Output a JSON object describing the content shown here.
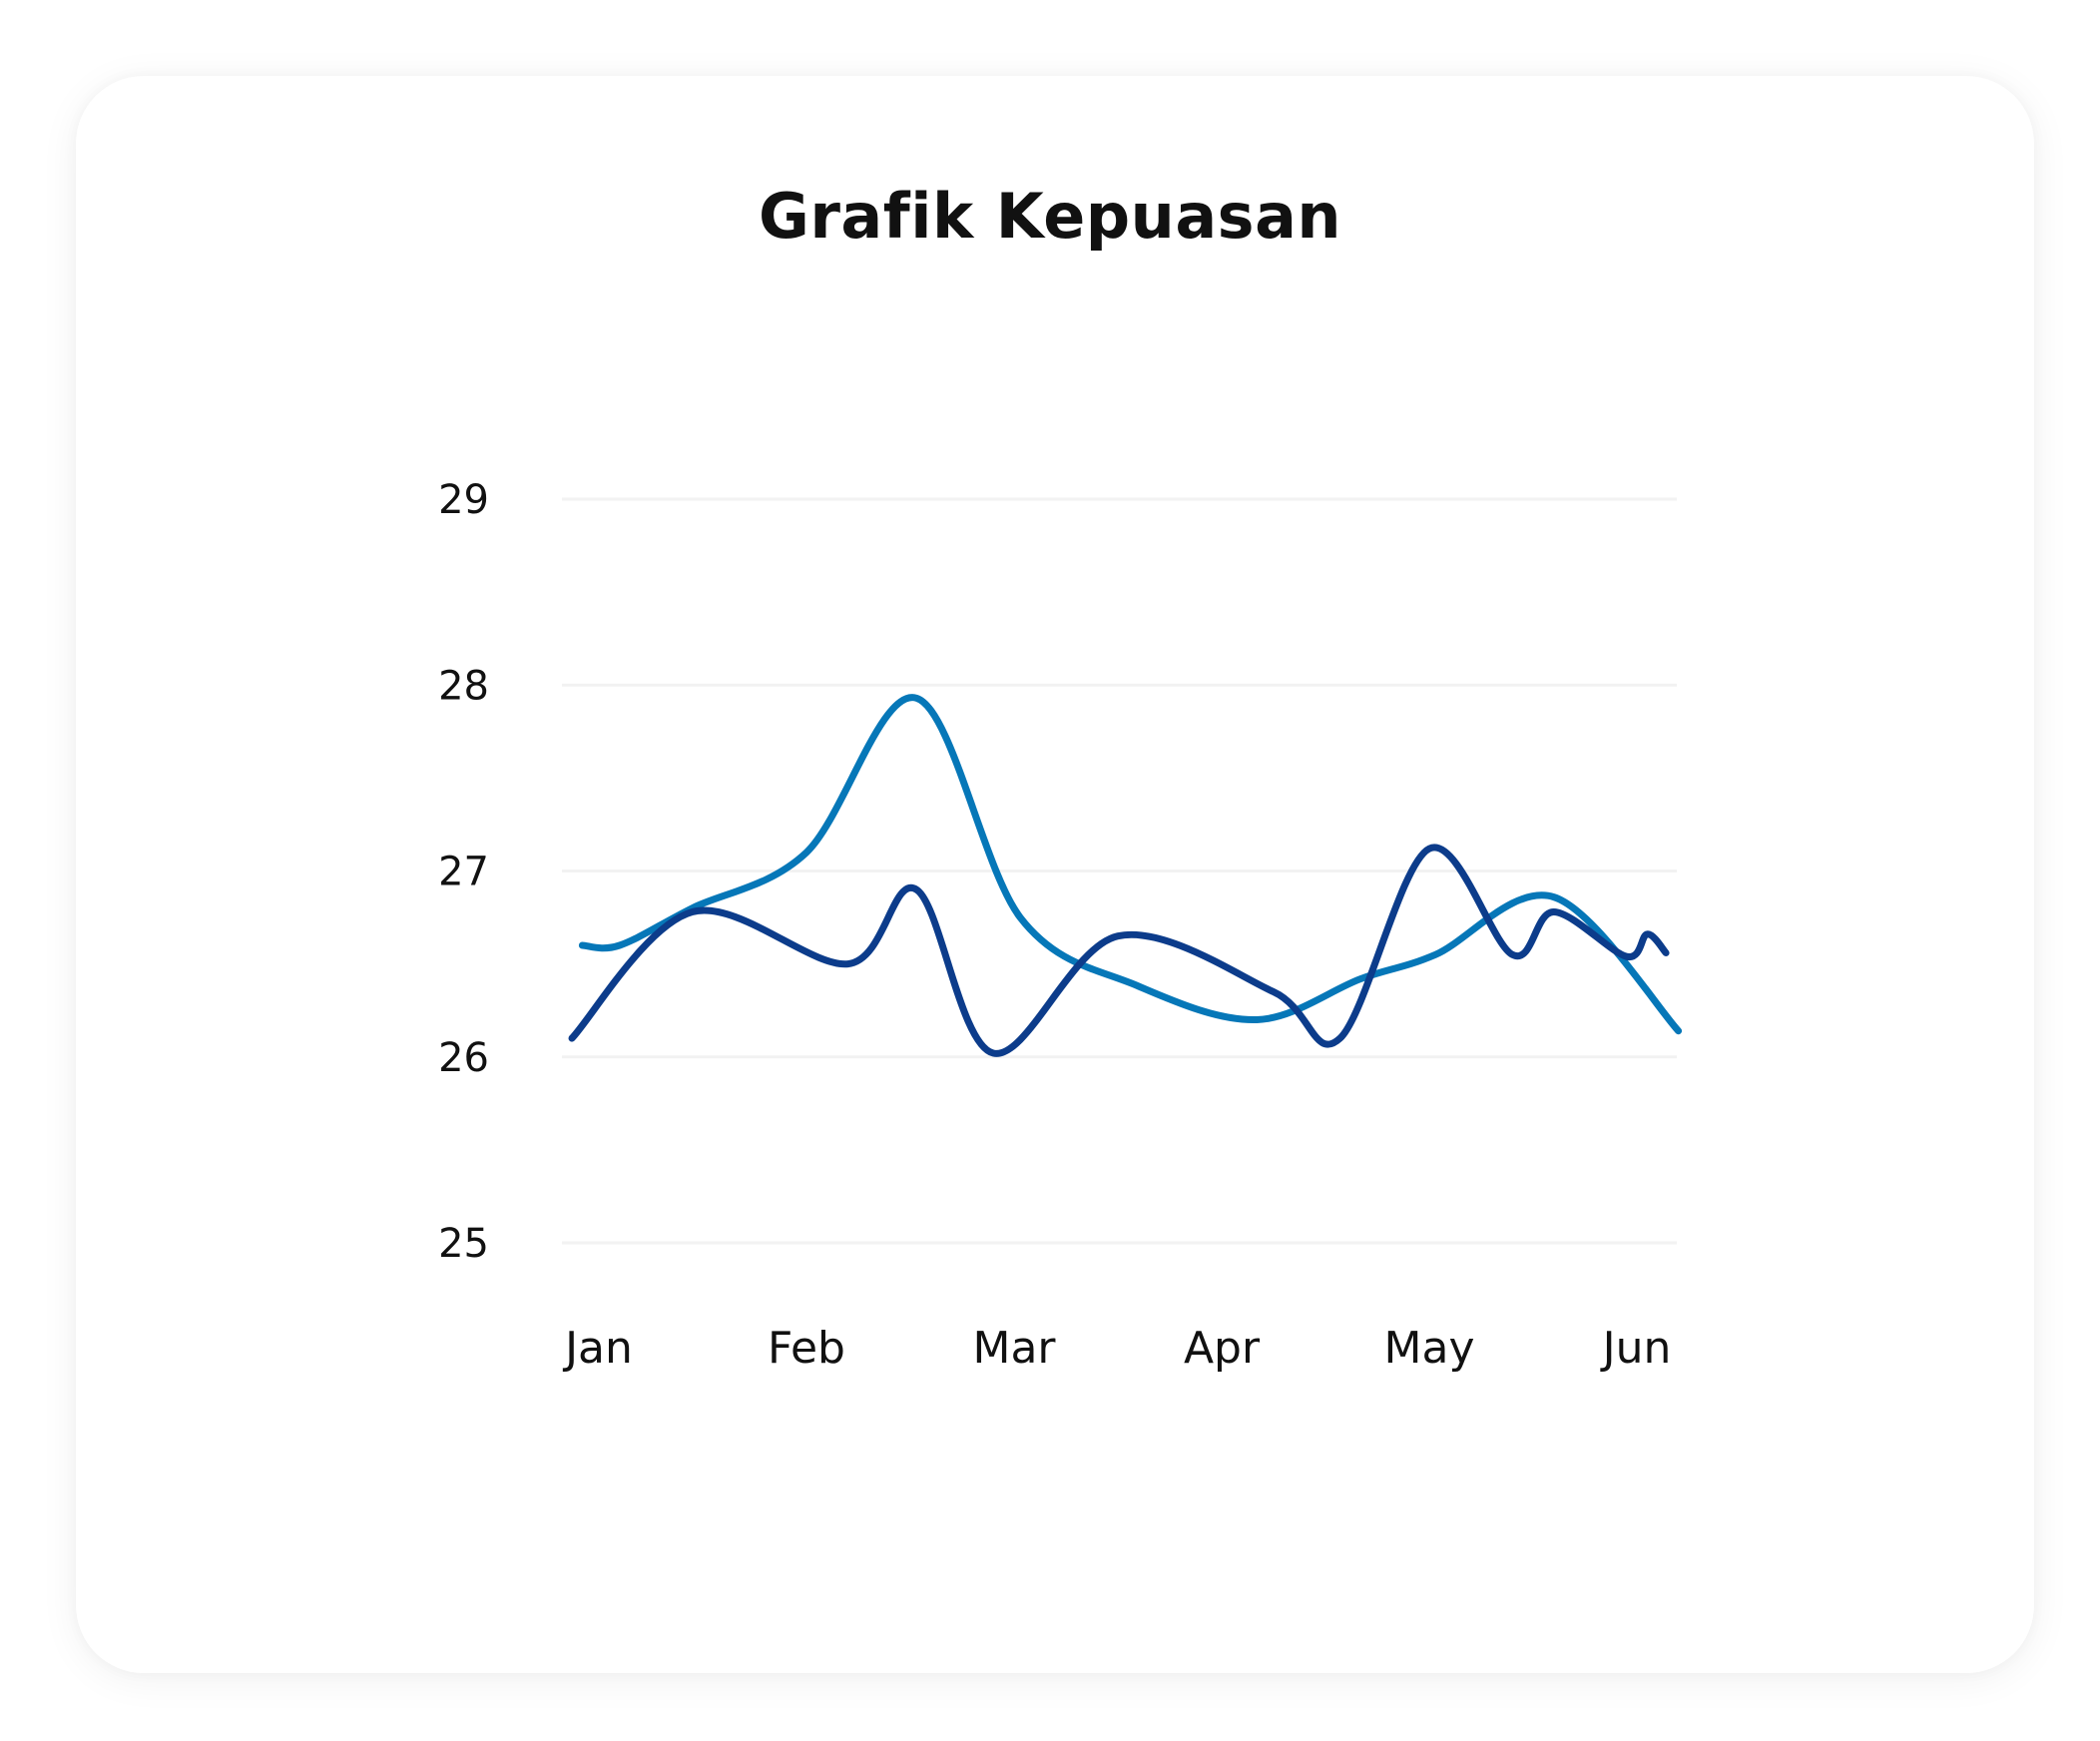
{
  "chart_data": {
    "type": "line",
    "title": "Grafik Kepuasan",
    "xlabel": "",
    "ylabel": "",
    "categories": [
      "Jan",
      "Feb",
      "Mar",
      "Apr",
      "May",
      "Jun"
    ],
    "xlim": [
      0,
      5.2
    ],
    "ylim": [
      25,
      29
    ],
    "yticks": [
      29,
      28,
      27,
      26,
      25
    ],
    "grid": true,
    "legend": "none",
    "series": [
      {
        "color": "#0677b8",
        "points": [
          [
            -0.08,
            26.6
          ],
          [
            0.1,
            26.6
          ],
          [
            0.45,
            26.8
          ],
          [
            1.0,
            27.1
          ],
          [
            1.53,
            27.93
          ],
          [
            2.03,
            26.75
          ],
          [
            2.6,
            26.38
          ],
          [
            3.17,
            26.2
          ],
          [
            3.67,
            26.42
          ],
          [
            4.03,
            26.55
          ],
          [
            4.6,
            26.86
          ],
          [
            5.2,
            26.14
          ]
        ]
      },
      {
        "color": "#0c3c8b",
        "points": [
          [
            -0.13,
            26.1
          ],
          [
            0.45,
            26.78
          ],
          [
            1.2,
            26.5
          ],
          [
            1.53,
            26.9
          ],
          [
            1.9,
            26.02
          ],
          [
            2.5,
            26.65
          ],
          [
            3.25,
            26.35
          ],
          [
            3.57,
            26.1
          ],
          [
            4.0,
            27.12
          ],
          [
            4.4,
            26.55
          ],
          [
            4.6,
            26.78
          ],
          [
            4.95,
            26.54
          ],
          [
            5.05,
            26.66
          ],
          [
            5.14,
            26.56
          ]
        ]
      }
    ]
  }
}
